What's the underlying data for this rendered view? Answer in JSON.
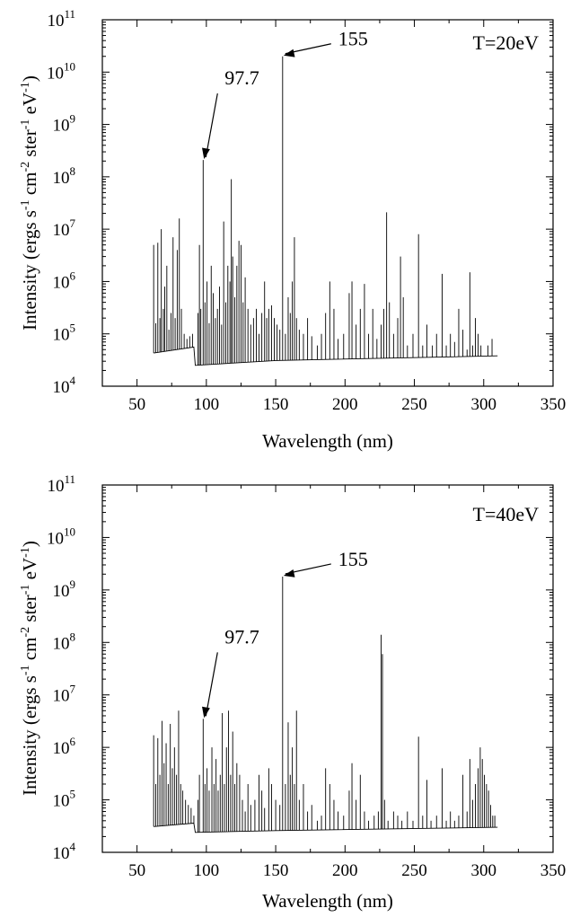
{
  "chart_data": [
    {
      "type": "line",
      "panel": "top",
      "xlabel": "Wavelength (nm)",
      "ylabel": "Intensity (ergs s^-1 cm^-2 ster^-1 eV^-1)",
      "xlim": [
        25,
        350
      ],
      "ylim_log10": [
        4,
        11
      ],
      "yscale": "log",
      "xticks": [
        50,
        100,
        150,
        200,
        250,
        300,
        350
      ],
      "yticks": [
        {
          "base": "10",
          "exp": "4"
        },
        {
          "base": "10",
          "exp": "5"
        },
        {
          "base": "10",
          "exp": "6"
        },
        {
          "base": "10",
          "exp": "7"
        },
        {
          "base": "10",
          "exp": "8"
        },
        {
          "base": "10",
          "exp": "9"
        },
        {
          "base": "10",
          "exp": "10"
        },
        {
          "base": "10",
          "exp": "11"
        }
      ],
      "temperature_label": "T=20eV",
      "annotations": [
        {
          "text": "155",
          "x": 155,
          "y": 20000000000.0
        },
        {
          "text": "97.7",
          "x": 97.7,
          "y": 210000000.0
        }
      ],
      "continuum": [
        [
          62,
          43000.0
        ],
        [
          91,
          56000.0
        ],
        [
          92,
          25000.0
        ],
        [
          150,
          31000.0
        ],
        [
          310,
          38000.0
        ]
      ],
      "peaks": [
        [
          62,
          5000000.0
        ],
        [
          63.5,
          160000.0
        ],
        [
          65,
          5500000.0
        ],
        [
          66.5,
          200000.0
        ],
        [
          67.5,
          10000000.0
        ],
        [
          69,
          300000.0
        ],
        [
          70,
          800000.0
        ],
        [
          71.5,
          2000000.0
        ],
        [
          73,
          120000.0
        ],
        [
          74.5,
          250000.0
        ],
        [
          76,
          7000000.0
        ],
        [
          77.5,
          200000.0
        ],
        [
          79,
          4000000.0
        ],
        [
          80.5,
          16000000.0
        ],
        [
          82,
          300000.0
        ],
        [
          84,
          100000.0
        ],
        [
          86,
          80000.0
        ],
        [
          88,
          90000.0
        ],
        [
          90,
          100000.0
        ],
        [
          94,
          250000.0
        ],
        [
          95,
          5000000.0
        ],
        [
          96,
          300000.0
        ],
        [
          97.7,
          210000000.0
        ],
        [
          99,
          400000.0
        ],
        [
          100.5,
          1000000.0
        ],
        [
          102,
          160000.0
        ],
        [
          103.5,
          2000000.0
        ],
        [
          105,
          600000.0
        ],
        [
          106.5,
          200000.0
        ],
        [
          108,
          300000.0
        ],
        [
          109.5,
          800000.0
        ],
        [
          111,
          150000.0
        ],
        [
          112.5,
          14000000.0
        ],
        [
          114,
          400000.0
        ],
        [
          115.5,
          2000000.0
        ],
        [
          117,
          1000000.0
        ],
        [
          118,
          90000000.0
        ],
        [
          119,
          3000000.0
        ],
        [
          120.5,
          500000.0
        ],
        [
          122,
          2000000.0
        ],
        [
          123.5,
          6000000.0
        ],
        [
          125,
          5000000.0
        ],
        [
          126.5,
          400000.0
        ],
        [
          128,
          1200000.0
        ],
        [
          130,
          300000.0
        ],
        [
          132,
          150000.0
        ],
        [
          134,
          200000.0
        ],
        [
          136,
          300000.0
        ],
        [
          138,
          100000.0
        ],
        [
          140,
          250000.0
        ],
        [
          142,
          1000000.0
        ],
        [
          143.5,
          200000.0
        ],
        [
          145,
          300000.0
        ],
        [
          147,
          350000.0
        ],
        [
          149,
          200000.0
        ],
        [
          151,
          150000.0
        ],
        [
          153,
          120000.0
        ],
        [
          155,
          20000000000.0
        ],
        [
          157,
          100000.0
        ],
        [
          159,
          500000.0
        ],
        [
          160.5,
          250000.0
        ],
        [
          162,
          1000000.0
        ],
        [
          163.5,
          7000000.0
        ],
        [
          165,
          200000.0
        ],
        [
          167,
          120000.0
        ],
        [
          170,
          100000.0
        ],
        [
          173,
          200000.0
        ],
        [
          176,
          90000.0
        ],
        [
          180,
          60000.0
        ],
        [
          183,
          100000.0
        ],
        [
          186,
          250000.0
        ],
        [
          189,
          1000000.0
        ],
        [
          192,
          300000.0
        ],
        [
          195,
          80000.0
        ],
        [
          199,
          100000.0
        ],
        [
          203,
          600000.0
        ],
        [
          205,
          1000000.0
        ],
        [
          208,
          150000.0
        ],
        [
          211,
          300000.0
        ],
        [
          214,
          900000.0
        ],
        [
          217,
          100000.0
        ],
        [
          220,
          300000.0
        ],
        [
          223,
          80000.0
        ],
        [
          226,
          150000.0
        ],
        [
          228,
          300000.0
        ],
        [
          230,
          21000000.0
        ],
        [
          232,
          400000.0
        ],
        [
          235,
          100000.0
        ],
        [
          238,
          200000.0
        ],
        [
          240,
          3000000.0
        ],
        [
          242,
          500000.0
        ],
        [
          245,
          60000.0
        ],
        [
          249,
          100000.0
        ],
        [
          253,
          8000000.0
        ],
        [
          256,
          60000.0
        ],
        [
          259,
          150000.0
        ],
        [
          263,
          60000.0
        ],
        [
          266,
          100000.0
        ],
        [
          270,
          1400000.0
        ],
        [
          273,
          60000.0
        ],
        [
          276,
          100000.0
        ],
        [
          279,
          70000.0
        ],
        [
          282,
          300000.0
        ],
        [
          285,
          120000.0
        ],
        [
          288,
          50000.0
        ],
        [
          290,
          1500000.0
        ],
        [
          292,
          60000.0
        ],
        [
          294,
          200000.0
        ],
        [
          296,
          100000.0
        ],
        [
          298,
          60000.0
        ],
        [
          303,
          60000.0
        ],
        [
          306,
          80000.0
        ]
      ]
    },
    {
      "type": "line",
      "panel": "bottom",
      "xlabel": "Wavelength (nm)",
      "ylabel": "Intensity (ergs s^-1 cm^-2 ster^-1 eV^-1)",
      "xlim": [
        25,
        350
      ],
      "ylim_log10": [
        4,
        11
      ],
      "yscale": "log",
      "xticks": [
        50,
        100,
        150,
        200,
        250,
        300,
        350
      ],
      "yticks": [
        {
          "base": "10",
          "exp": "4"
        },
        {
          "base": "10",
          "exp": "5"
        },
        {
          "base": "10",
          "exp": "6"
        },
        {
          "base": "10",
          "exp": "7"
        },
        {
          "base": "10",
          "exp": "8"
        },
        {
          "base": "10",
          "exp": "9"
        },
        {
          "base": "10",
          "exp": "10"
        },
        {
          "base": "10",
          "exp": "11"
        }
      ],
      "temperature_label": "T=40eV",
      "annotations": [
        {
          "text": "155",
          "x": 155,
          "y": 1800000000.0
        },
        {
          "text": "97.7",
          "x": 97.7,
          "y": 3500000.0
        }
      ],
      "continuum": [
        [
          62,
          31000.0
        ],
        [
          91,
          36000.0
        ],
        [
          92,
          24000.0
        ],
        [
          150,
          26000.0
        ],
        [
          310,
          30000.0
        ]
      ],
      "peaks": [
        [
          62,
          1700000.0
        ],
        [
          63.5,
          200000.0
        ],
        [
          65,
          1500000.0
        ],
        [
          66.5,
          300000.0
        ],
        [
          68,
          3200000.0
        ],
        [
          69.5,
          500000.0
        ],
        [
          71,
          1200000.0
        ],
        [
          72.5,
          200000.0
        ],
        [
          74,
          2800000.0
        ],
        [
          75.5,
          400000.0
        ],
        [
          77,
          1000000.0
        ],
        [
          78.5,
          300000.0
        ],
        [
          80,
          5000000.0
        ],
        [
          81.5,
          200000.0
        ],
        [
          83,
          150000.0
        ],
        [
          85,
          100000.0
        ],
        [
          87,
          80000.0
        ],
        [
          89,
          70000.0
        ],
        [
          91,
          50000.0
        ],
        [
          94,
          100000.0
        ],
        [
          95,
          300000.0
        ],
        [
          97.7,
          3500000.0
        ],
        [
          99,
          200000.0
        ],
        [
          100.5,
          400000.0
        ],
        [
          102,
          150000.0
        ],
        [
          104,
          1000000.0
        ],
        [
          105.5,
          200000.0
        ],
        [
          107,
          600000.0
        ],
        [
          108.5,
          150000.0
        ],
        [
          110,
          300000.0
        ],
        [
          111.5,
          4500000.0
        ],
        [
          113,
          200000.0
        ],
        [
          114.5,
          1000000.0
        ],
        [
          116,
          5000000.0
        ],
        [
          117.5,
          300000.0
        ],
        [
          119,
          2000000.0
        ],
        [
          120.5,
          200000.0
        ],
        [
          122,
          500000.0
        ],
        [
          124,
          300000.0
        ],
        [
          126,
          100000.0
        ],
        [
          128,
          60000.0
        ],
        [
          130,
          200000.0
        ],
        [
          132,
          80000.0
        ],
        [
          135,
          100000.0
        ],
        [
          138,
          300000.0
        ],
        [
          140,
          150000.0
        ],
        [
          142,
          70000.0
        ],
        [
          145,
          400000.0
        ],
        [
          147,
          200000.0
        ],
        [
          150,
          100000.0
        ],
        [
          153,
          80000.0
        ],
        [
          155,
          1800000000.0
        ],
        [
          157,
          200000.0
        ],
        [
          159,
          3000000.0
        ],
        [
          160.5,
          300000.0
        ],
        [
          162,
          1000000.0
        ],
        [
          163.5,
          200000.0
        ],
        [
          165,
          5000000.0
        ],
        [
          167,
          100000.0
        ],
        [
          170,
          200000.0
        ],
        [
          173,
          60000.0
        ],
        [
          176,
          80000.0
        ],
        [
          180,
          40000.0
        ],
        [
          183,
          50000.0
        ],
        [
          186,
          400000.0
        ],
        [
          189,
          200000.0
        ],
        [
          192,
          100000.0
        ],
        [
          195,
          60000.0
        ],
        [
          199,
          50000.0
        ],
        [
          203,
          150000.0
        ],
        [
          205,
          500000.0
        ],
        [
          208,
          100000.0
        ],
        [
          211,
          300000.0
        ],
        [
          214,
          60000.0
        ],
        [
          217,
          40000.0
        ],
        [
          221,
          50000.0
        ],
        [
          224,
          60000.0
        ],
        [
          226,
          140000000.0
        ],
        [
          227,
          60000000.0
        ],
        [
          228.5,
          100000.0
        ],
        [
          231,
          40000.0
        ],
        [
          235,
          60000.0
        ],
        [
          238,
          50000.0
        ],
        [
          241,
          40000.0
        ],
        [
          245,
          60000.0
        ],
        [
          249,
          40000.0
        ],
        [
          253,
          1600000.0
        ],
        [
          256,
          50000.0
        ],
        [
          259,
          240000.0
        ],
        [
          262,
          40000.0
        ],
        [
          266,
          50000.0
        ],
        [
          270,
          400000.0
        ],
        [
          273,
          40000.0
        ],
        [
          276,
          60000.0
        ],
        [
          279,
          40000.0
        ],
        [
          282,
          50000.0
        ],
        [
          285,
          300000.0
        ],
        [
          288,
          60000.0
        ],
        [
          290,
          600000.0
        ],
        [
          292,
          100000.0
        ],
        [
          294,
          200000.0
        ],
        [
          296,
          400000.0
        ],
        [
          297.5,
          1000000.0
        ],
        [
          299,
          600000.0
        ],
        [
          300.5,
          300000.0
        ],
        [
          302,
          200000.0
        ],
        [
          303.5,
          150000.0
        ],
        [
          305,
          80000.0
        ],
        [
          306.5,
          50000.0
        ],
        [
          308,
          50000.0
        ]
      ]
    }
  ]
}
